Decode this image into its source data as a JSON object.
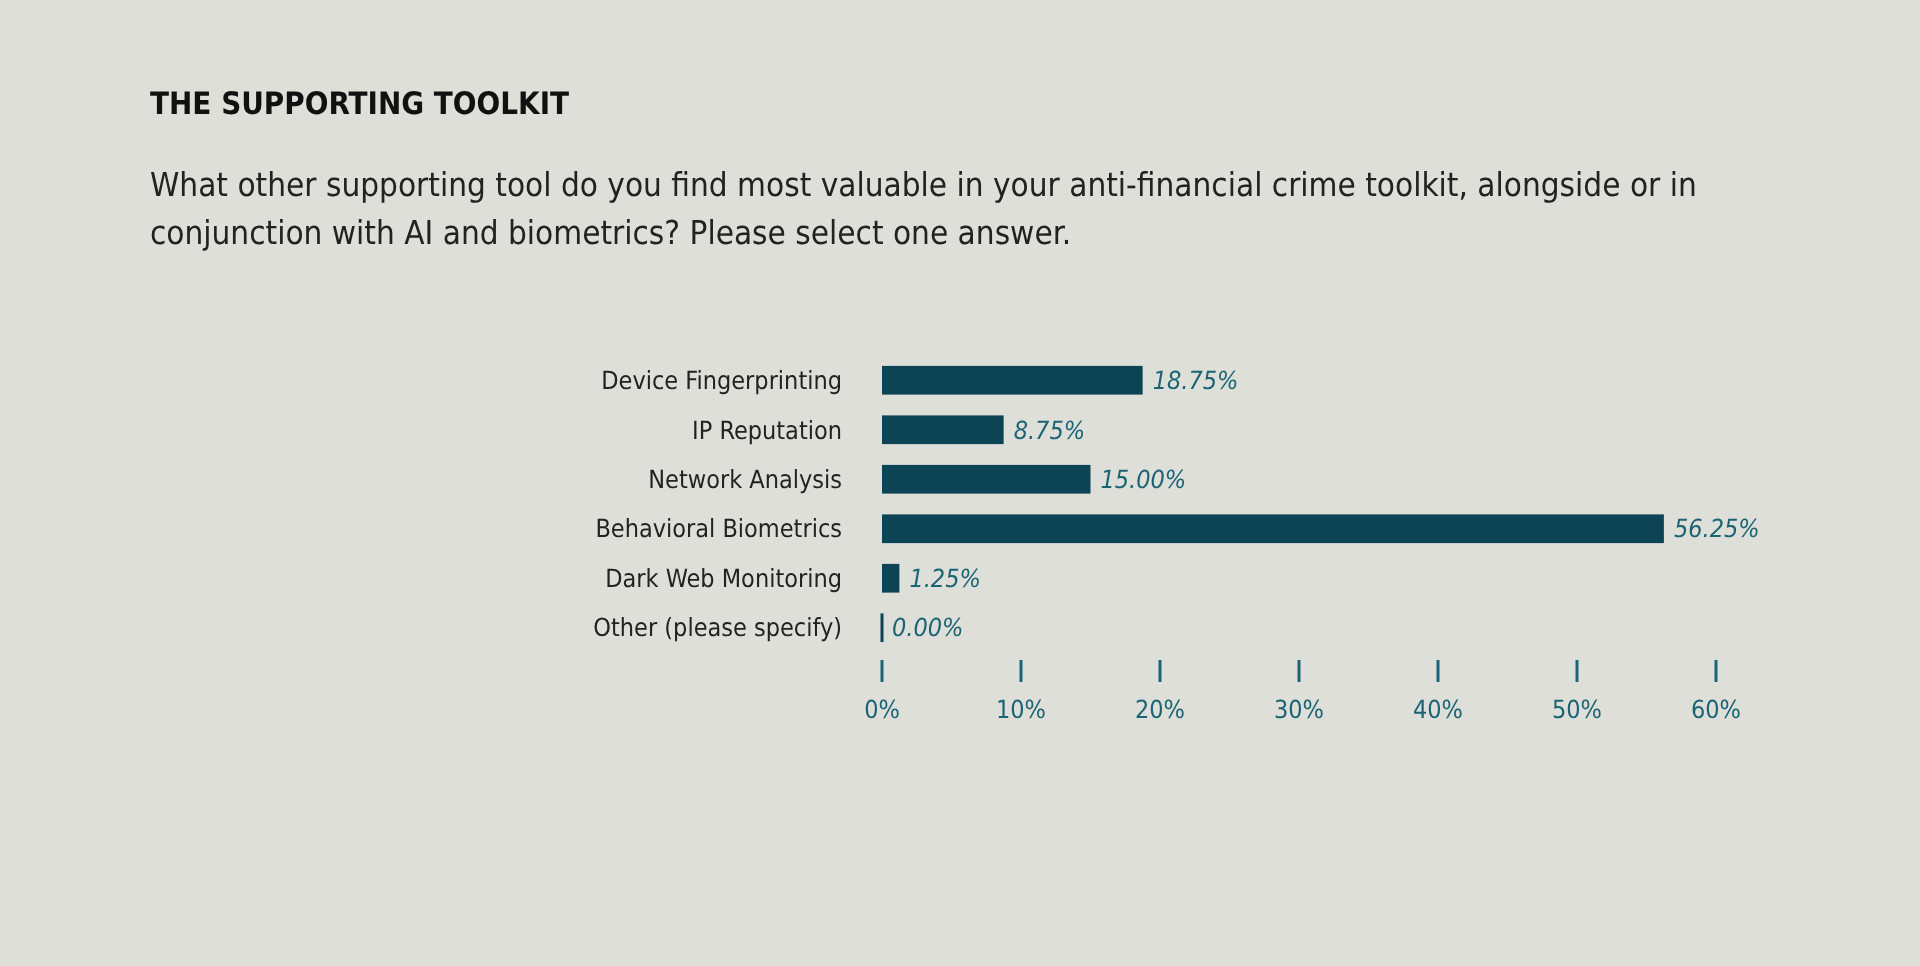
{
  "chart_data": {
    "type": "bar",
    "orientation": "horizontal",
    "title": "THE SUPPORTING TOOLKIT",
    "subtitle": "What other supporting tool do you find most valuable in your anti-financial crime toolkit, alongside or in conjunction with AI and biometrics? Please select one answer.",
    "categories": [
      "Device Fingerprinting",
      "IP Reputation",
      "Network Analysis",
      "Behavioral Biometrics",
      "Dark Web Monitoring",
      "Other (please specify)"
    ],
    "values": [
      18.75,
      8.75,
      15.0,
      56.25,
      1.25,
      0.0
    ],
    "value_labels": [
      "18.75%",
      "8.75%",
      "15.00%",
      "56.25%",
      "1.25%",
      "0.00%"
    ],
    "color": "#0c4455",
    "xlim": [
      0,
      60
    ],
    "xticks": [
      {
        "value": 0,
        "label": "0%"
      },
      {
        "value": 10,
        "label": "10%"
      },
      {
        "value": 20,
        "label": "20%"
      },
      {
        "value": 30,
        "label": "30%"
      },
      {
        "value": 40,
        "label": "40%"
      },
      {
        "value": 50,
        "label": "50%"
      },
      {
        "value": 60,
        "label": "60%"
      }
    ],
    "grid": false
  }
}
